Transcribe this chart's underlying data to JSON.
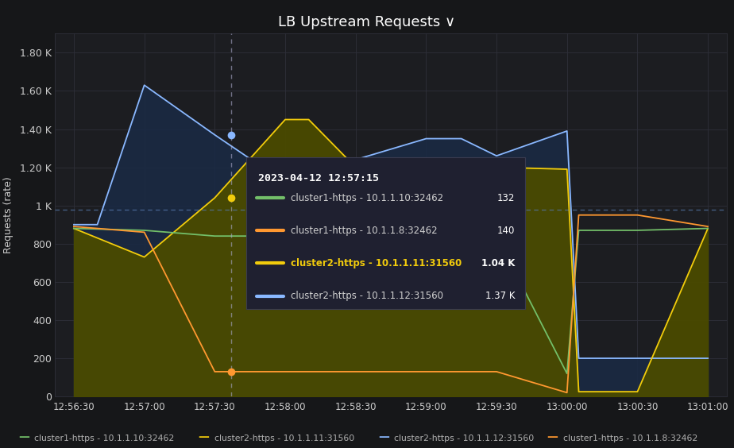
{
  "title": "LB Upstream Requests ∨",
  "ylabel": "Requests (rate)",
  "fig_bg": "#161719",
  "plot_bg": "#1c1d21",
  "grid_color": "#2e2f3a",
  "text_color": "#cccccc",
  "ylim": [
    0,
    1900
  ],
  "yticks": [
    0,
    200,
    400,
    600,
    800,
    1000,
    1200,
    1400,
    1600,
    1800
  ],
  "ytick_labels": [
    "0",
    "200",
    "400",
    "600",
    "800",
    "1 K",
    "1.20 K",
    "1.40 K",
    "1.60 K",
    "1.80 K"
  ],
  "xtick_labels": [
    "12:56:30",
    "12:57:00",
    "12:57:30",
    "12:58:00",
    "12:58:30",
    "12:59:00",
    "12:59:30",
    "13:00:00",
    "13:00:30",
    "13:01:00"
  ],
  "x_values": [
    0,
    30,
    60,
    90,
    120,
    150,
    180,
    210,
    240,
    270
  ],
  "xlim": [
    -8,
    278
  ],
  "legend": [
    {
      "label": "cluster1-https - 10.1.1.10:32462",
      "color": "#73bf69"
    },
    {
      "label": "cluster2-https - 10.1.1.11:31560",
      "color": "#f2cc0c"
    },
    {
      "label": "cluster2-https - 10.1.1.12:31560",
      "color": "#8ab8ff"
    },
    {
      "label": "cluster1-https - 10.1.1.8:32462",
      "color": "#ff9830"
    }
  ],
  "series": {
    "cluster2_11": {
      "color": "#f2cc0c",
      "fill_color": "#4a4a00",
      "x": [
        0,
        30,
        60,
        90,
        100,
        120,
        150,
        180,
        210,
        215,
        240,
        270
      ],
      "y": [
        880,
        730,
        1040,
        1450,
        1450,
        1200,
        1200,
        1200,
        1190,
        25,
        25,
        880
      ]
    },
    "cluster2_12": {
      "color": "#8ab8ff",
      "fill_color": "#1a2a45",
      "x": [
        0,
        10,
        30,
        60,
        90,
        120,
        150,
        165,
        180,
        210,
        215,
        240,
        270
      ],
      "y": [
        900,
        900,
        1630,
        1370,
        1120,
        1240,
        1350,
        1350,
        1260,
        1390,
        200,
        200,
        200
      ]
    },
    "cluster1_10": {
      "color": "#73bf69",
      "x": [
        0,
        30,
        60,
        90,
        120,
        150,
        180,
        210,
        215,
        240,
        270
      ],
      "y": [
        880,
        870,
        840,
        840,
        840,
        840,
        840,
        120,
        870,
        870,
        880
      ]
    },
    "cluster1_8": {
      "color": "#ff9830",
      "x": [
        0,
        30,
        60,
        90,
        120,
        150,
        180,
        210,
        215,
        240,
        270
      ],
      "y": [
        890,
        860,
        130,
        130,
        130,
        130,
        130,
        20,
        950,
        950,
        890
      ]
    }
  },
  "tooltip": {
    "time": "2023-04-12 12:57:15",
    "items": [
      {
        "label": "cluster1-https - 10.1.1.10:32462",
        "color": "#73bf69",
        "value": "132",
        "bold": false
      },
      {
        "label": "cluster1-https - 10.1.1.8:32462",
        "color": "#ff9830",
        "value": "140",
        "bold": false
      },
      {
        "label": "cluster2-https - 10.1.1.11:31560",
        "color": "#f2cc0c",
        "value": "1.04 K",
        "bold": true
      },
      {
        "label": "cluster2-https - 10.1.1.12:31560",
        "color": "#8ab8ff",
        "value": "1.37 K",
        "bold": false
      }
    ]
  },
  "vline_x": 67,
  "hline_y": 980,
  "marker_yellow_y": 1040,
  "marker_blue_y": 1370,
  "marker_orange_y": 130
}
